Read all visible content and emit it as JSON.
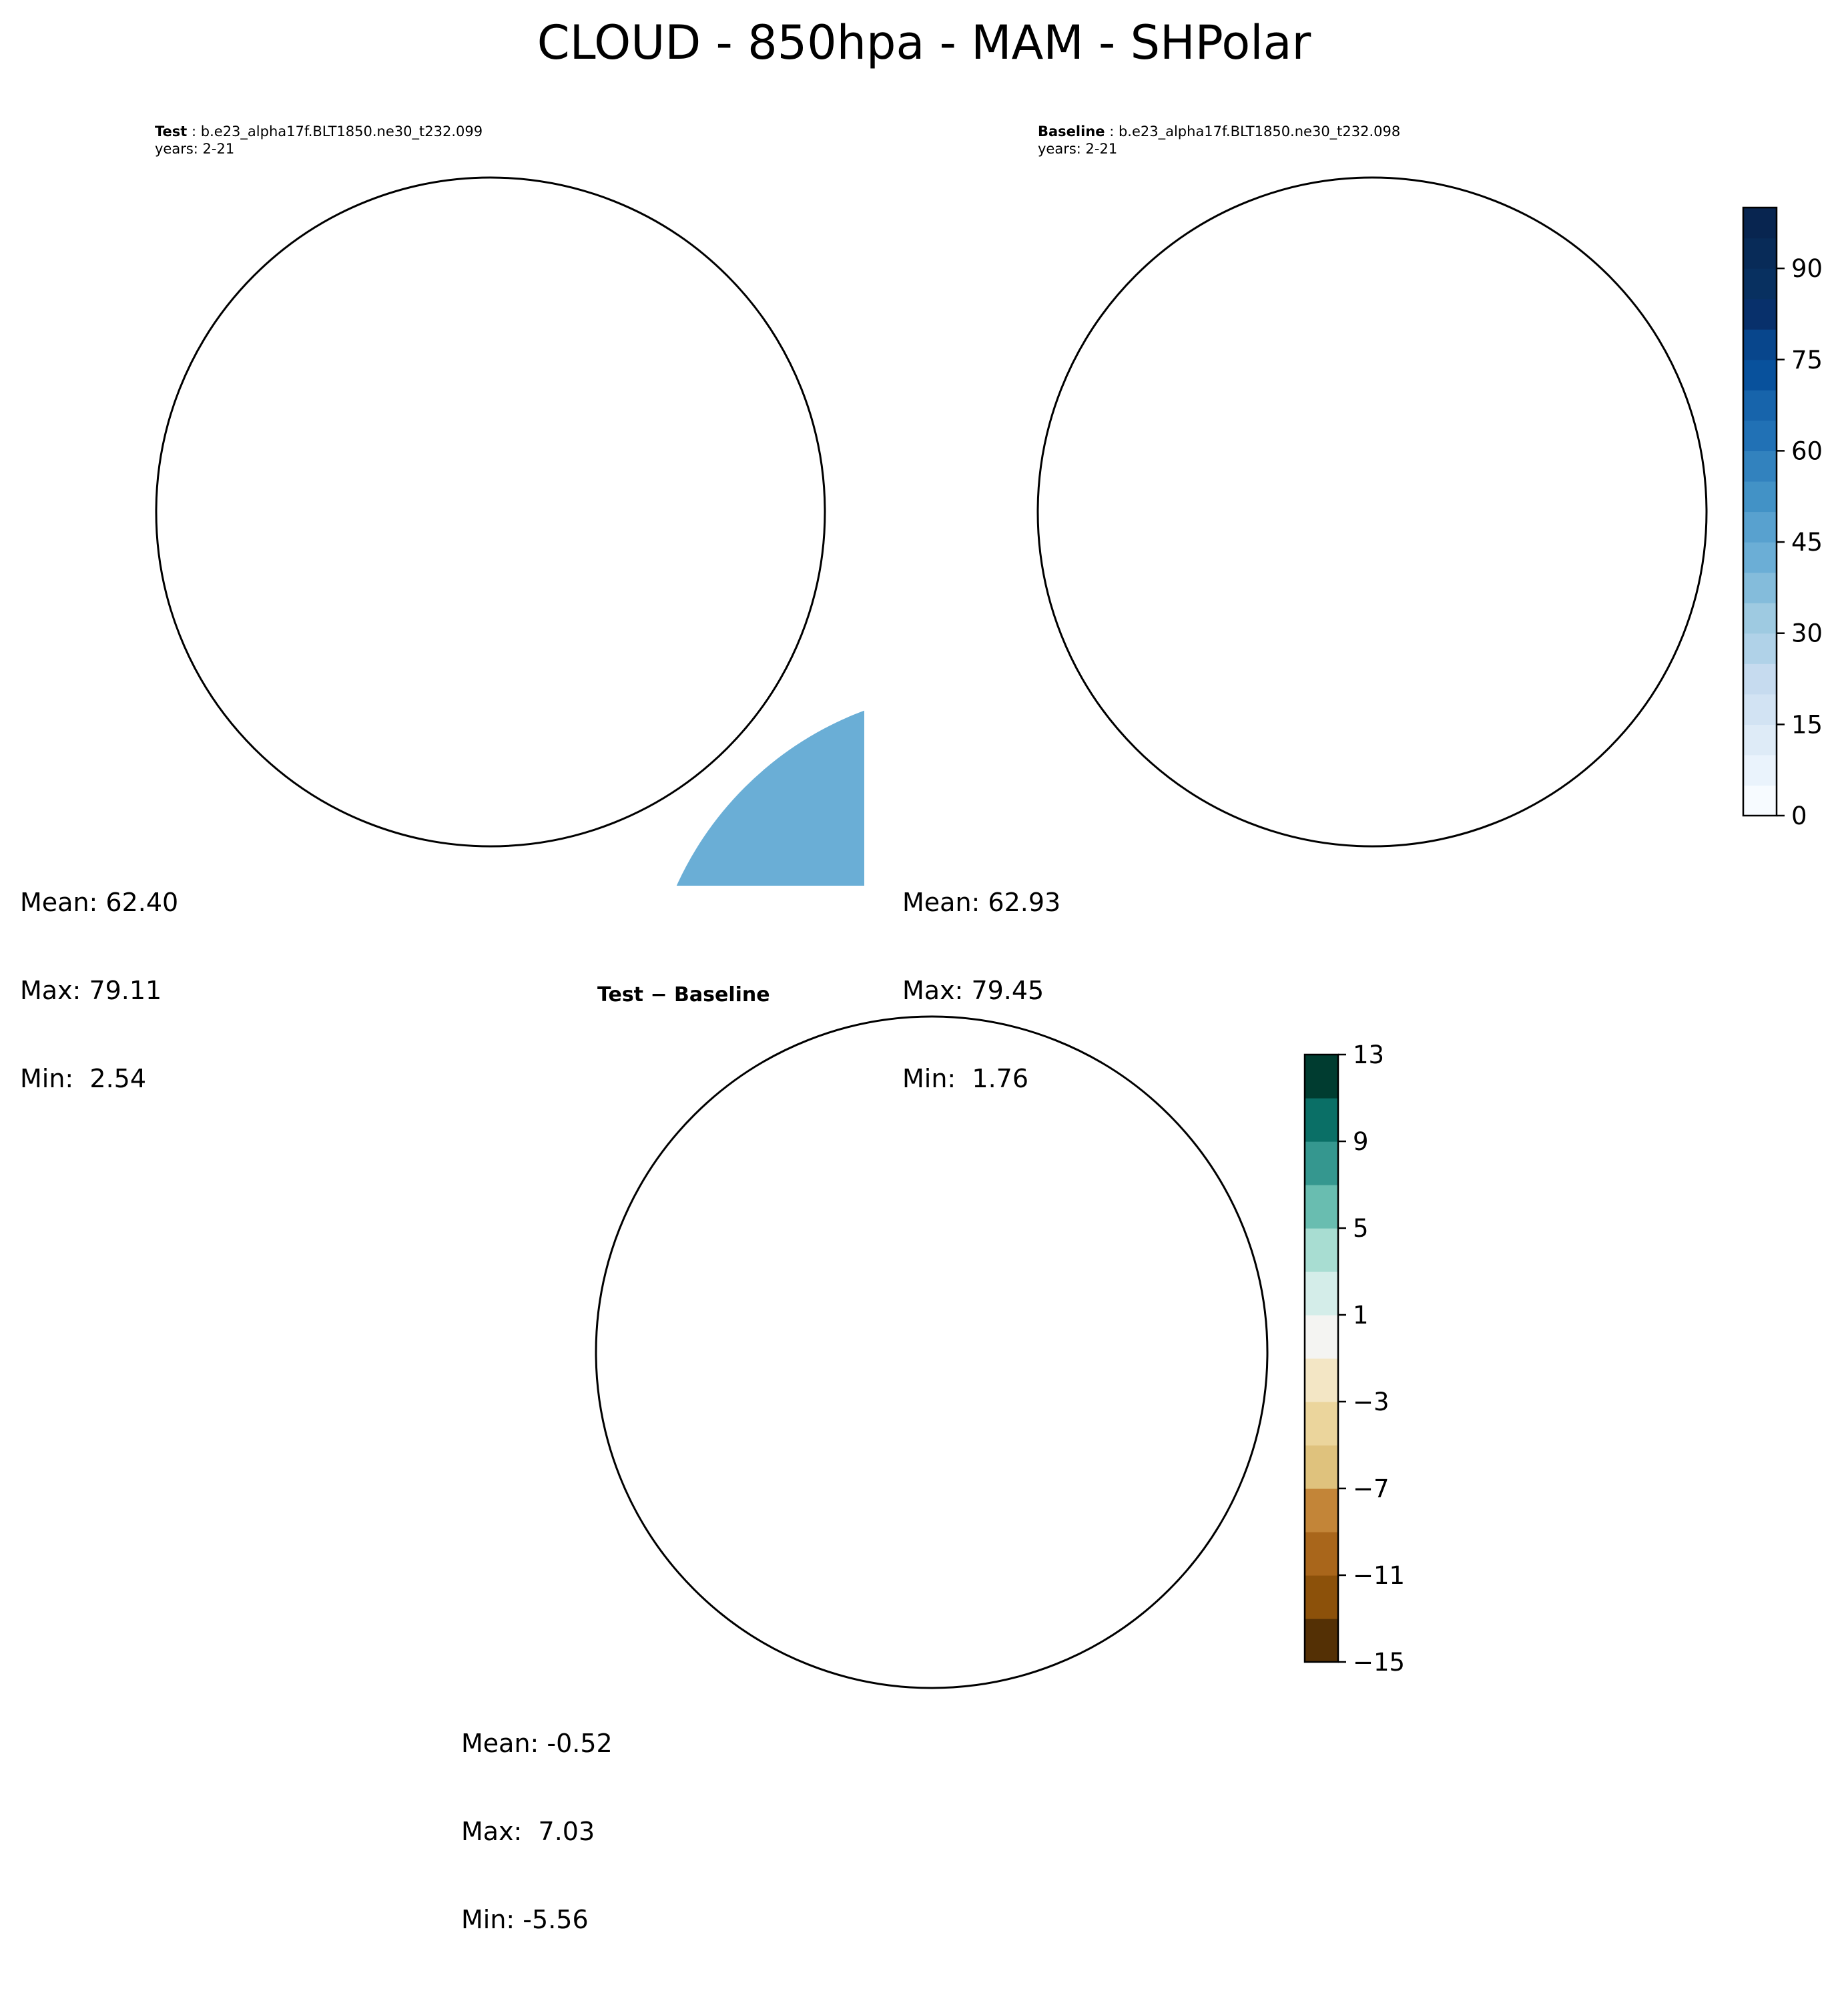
{
  "figure": {
    "title": "CLOUD - 850hpa - MAM - SHPolar"
  },
  "panels": [
    {
      "id": "test",
      "case_label": "Test",
      "case_name": "b.e23_alpha17f.BLT1850.ne30_t232.099",
      "years": "years: 2-21",
      "stats": {
        "mean": "Mean: 62.40",
        "max": "Max: 79.11",
        "min": "Min:  2.54"
      }
    },
    {
      "id": "baseline",
      "case_label": "Baseline",
      "case_name": "b.e23_alpha17f.BLT1850.ne30_t232.098",
      "years": "years: 2-21",
      "stats": {
        "mean": "Mean: 62.93",
        "max": "Max: 79.45",
        "min": "Min:  1.76"
      }
    },
    {
      "id": "difference",
      "title": "Test − Baseline",
      "stats": {
        "mean": "Mean: -0.52",
        "max": "Max:  7.03",
        "min": "Min: -5.56"
      }
    }
  ],
  "colorbars": {
    "main": {
      "ticks": [
        "0",
        "15",
        "30",
        "45",
        "60",
        "75",
        "90"
      ],
      "tick_values": [
        0,
        15,
        30,
        45,
        60,
        75,
        90
      ],
      "range": [
        0,
        100
      ],
      "levels": 20,
      "colors": [
        "#f7fbff",
        "#eaf3fc",
        "#deebf7",
        "#d2e3f3",
        "#c6dbef",
        "#b0d2e8",
        "#9ecae1",
        "#84bcdb",
        "#6baed6",
        "#58a1cf",
        "#4292c6",
        "#3282be",
        "#2171b5",
        "#1764ab",
        "#08519c",
        "#08468c",
        "#08306b",
        "#083060",
        "#082b58",
        "#082550"
      ]
    },
    "diff": {
      "ticks": [
        "13",
        "9",
        "5",
        "1",
        "−3",
        "−7",
        "−11",
        "−15"
      ],
      "tick_values": [
        13,
        9,
        5,
        1,
        -3,
        -7,
        -11,
        -15
      ],
      "range": [
        -15,
        13
      ],
      "levels": 14,
      "colors": [
        "#543005",
        "#8c510a",
        "#a9661b",
        "#c38538",
        "#dfc27d",
        "#ebd59c",
        "#f3e6c5",
        "#f4f4f2",
        "#d4ede9",
        "#a8ddd2",
        "#69bdb0",
        "#35978f",
        "#0a6f66",
        "#003c30"
      ]
    }
  }
}
